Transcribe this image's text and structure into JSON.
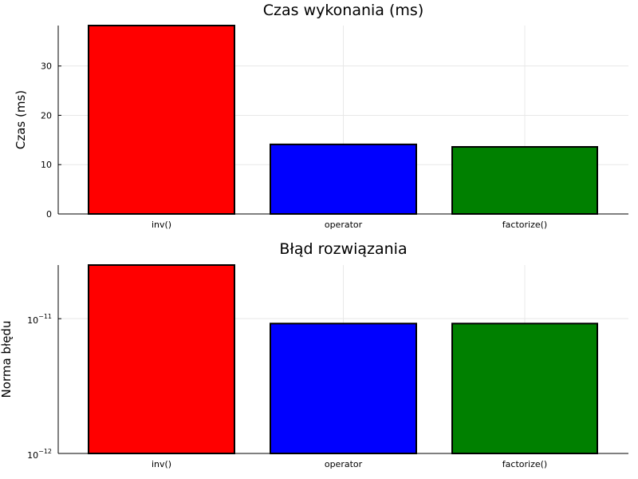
{
  "chart_data": [
    {
      "type": "bar",
      "title": "Czas wykonania (ms)",
      "ylabel": "Czas (ms)",
      "xlabel": "",
      "categories": [
        "inv()",
        "operator",
        "factorize()"
      ],
      "values": [
        38.2,
        14.1,
        13.6
      ],
      "colors": [
        "#ff0000",
        "#0000ff",
        "#008000"
      ],
      "ylim": [
        0,
        38.2
      ],
      "yscale": "linear",
      "yticks": [
        0,
        10,
        20,
        30
      ],
      "ytick_labels": [
        "0",
        "10",
        "20",
        "30"
      ],
      "grid": true,
      "legend": "none"
    },
    {
      "type": "bar",
      "title": "Błąd rozwiązania",
      "ylabel": "Norma błędu",
      "xlabel": "",
      "categories": [
        "inv()",
        "operator",
        "factorize()"
      ],
      "values": [
        2.5e-11,
        9.2e-12,
        9.2e-12
      ],
      "colors": [
        "#ff0000",
        "#0000ff",
        "#008000"
      ],
      "ylim": [
        1e-12,
        2.5e-11
      ],
      "yscale": "log",
      "yticks": [
        1e-12,
        1e-11
      ],
      "ytick_labels": [
        {
          "base": "10",
          "exp": "−12"
        },
        {
          "base": "10",
          "exp": "−11"
        }
      ],
      "grid": true,
      "legend": "none"
    }
  ]
}
